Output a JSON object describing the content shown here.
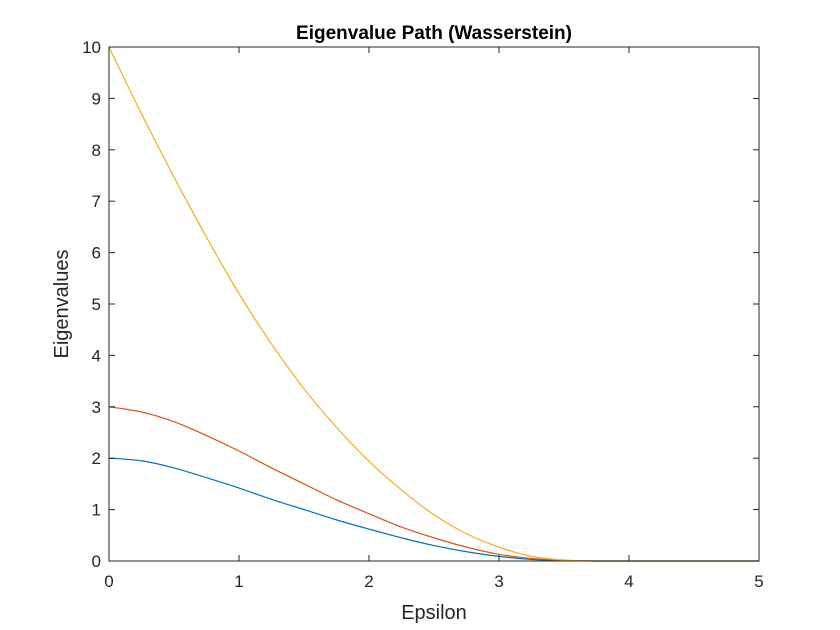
{
  "chart_data": {
    "type": "line",
    "title": "Eigenvalue Path (Wasserstein)",
    "xlabel": "Epsilon",
    "ylabel": "Eigenvalues",
    "xlim": [
      0,
      5
    ],
    "ylim": [
      0,
      10
    ],
    "xticks": [
      "0",
      "1",
      "2",
      "3",
      "4",
      "5"
    ],
    "yticks": [
      "0",
      "1",
      "2",
      "3",
      "4",
      "5",
      "6",
      "7",
      "8",
      "9",
      "10"
    ],
    "grid": false,
    "legend": "none",
    "x": [
      0,
      0.25,
      0.5,
      0.75,
      1.0,
      1.25,
      1.5,
      1.75,
      2.0,
      2.25,
      2.5,
      2.75,
      3.0,
      3.25,
      3.5,
      3.75,
      4.0,
      4.25,
      4.5,
      4.75,
      5.0
    ],
    "series": [
      {
        "color": "#0072BD",
        "values": [
          2.0,
          1.95,
          1.81,
          1.62,
          1.42,
          1.2,
          1.0,
          0.8,
          0.62,
          0.45,
          0.3,
          0.18,
          0.09,
          0.03,
          0.01,
          0.0,
          0.0,
          0.0,
          0.0,
          0.0,
          0.0
        ]
      },
      {
        "color": "#D95319",
        "values": [
          3.0,
          2.9,
          2.71,
          2.44,
          2.14,
          1.81,
          1.5,
          1.19,
          0.92,
          0.66,
          0.45,
          0.27,
          0.13,
          0.05,
          0.01,
          0.0,
          0.0,
          0.0,
          0.0,
          0.0,
          0.0
        ]
      },
      {
        "color": "#EDB120",
        "values": [
          10.0,
          8.7,
          7.47,
          6.3,
          5.2,
          4.22,
          3.35,
          2.6,
          1.94,
          1.38,
          0.9,
          0.53,
          0.27,
          0.09,
          0.02,
          0.0,
          0.0,
          0.0,
          0.0,
          0.0,
          0.0
        ]
      }
    ]
  }
}
